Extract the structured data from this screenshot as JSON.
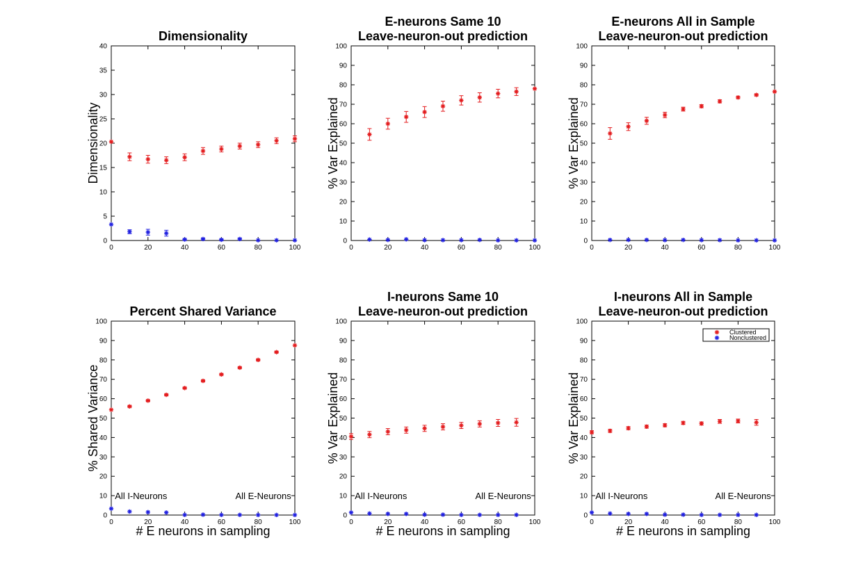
{
  "series_names": [
    "Clustered",
    "Nonclustered"
  ],
  "colors": {
    "Clustered": "#e31a1c",
    "Nonclustered": "#1f1fe0",
    "axes": "#000000",
    "background": "#ffffff"
  },
  "chart_data": [
    {
      "type": "scatter",
      "title_lines": [
        "Dimensionality"
      ],
      "xlabel": "",
      "ylabel": "Dimensionality",
      "xlim": [
        0,
        100
      ],
      "ylim": [
        0,
        40
      ],
      "xticks": [
        0,
        20,
        40,
        60,
        80,
        100
      ],
      "yticks": [
        0,
        5,
        10,
        15,
        20,
        25,
        30,
        35,
        40
      ],
      "annotations": [],
      "legend": false,
      "series": [
        {
          "name": "Clustered",
          "x": [
            0,
            10,
            20,
            30,
            40,
            50,
            60,
            70,
            80,
            90,
            100
          ],
          "y": [
            20.3,
            17.2,
            16.7,
            16.5,
            17.1,
            18.4,
            18.8,
            19.4,
            19.7,
            20.5,
            20.9
          ],
          "err": [
            0,
            0.8,
            0.8,
            0.7,
            0.7,
            0.7,
            0.6,
            0.6,
            0.6,
            0.6,
            0.6
          ]
        },
        {
          "name": "Nonclustered",
          "x": [
            0,
            10,
            20,
            30,
            40,
            50,
            60,
            70,
            80,
            90,
            100
          ],
          "y": [
            3.3,
            1.8,
            1.7,
            1.5,
            0.2,
            0.3,
            0.15,
            0.3,
            0.05,
            0.05,
            0.05
          ],
          "err": [
            0,
            0.4,
            0.6,
            0.6,
            0.2,
            0.2,
            0.15,
            0.2,
            0,
            0,
            0
          ]
        }
      ]
    },
    {
      "type": "scatter",
      "title_lines": [
        "E-neurons Same 10",
        "Leave-neuron-out prediction"
      ],
      "xlabel": "",
      "ylabel": "% Var Explained",
      "xlim": [
        0,
        100
      ],
      "ylim": [
        0,
        100
      ],
      "xticks": [
        0,
        20,
        40,
        60,
        80,
        100
      ],
      "yticks": [
        0,
        10,
        20,
        30,
        40,
        50,
        60,
        70,
        80,
        90,
        100
      ],
      "annotations": [],
      "legend": false,
      "series": [
        {
          "name": "Clustered",
          "x": [
            10,
            20,
            30,
            40,
            50,
            60,
            70,
            80,
            90,
            100
          ],
          "y": [
            54.5,
            60,
            63.5,
            66,
            69,
            72,
            73.5,
            75.5,
            76.5,
            78
          ],
          "err": [
            3,
            2.8,
            2.8,
            2.8,
            2.6,
            2.4,
            2.4,
            2.2,
            2.0,
            0
          ]
        },
        {
          "name": "Nonclustered",
          "x": [
            10,
            20,
            30,
            40,
            50,
            60,
            70,
            80,
            90,
            100
          ],
          "y": [
            0.5,
            0.3,
            0.6,
            0.2,
            0.2,
            0.2,
            0.3,
            0.1,
            0.1,
            0.1
          ],
          "err": [
            0,
            0,
            0,
            0,
            0,
            0,
            0,
            0,
            0,
            0
          ]
        }
      ]
    },
    {
      "type": "scatter",
      "title_lines": [
        "E-neurons All in Sample",
        "Leave-neuron-out prediction"
      ],
      "xlabel": "",
      "ylabel": "% Var Explained",
      "xlim": [
        0,
        100
      ],
      "ylim": [
        0,
        100
      ],
      "xticks": [
        0,
        20,
        40,
        60,
        80,
        100
      ],
      "yticks": [
        0,
        10,
        20,
        30,
        40,
        50,
        60,
        70,
        80,
        90,
        100
      ],
      "annotations": [],
      "legend": false,
      "series": [
        {
          "name": "Clustered",
          "x": [
            10,
            20,
            30,
            40,
            50,
            60,
            70,
            80,
            90,
            100
          ],
          "y": [
            55,
            58.5,
            61.5,
            64.5,
            67.5,
            69,
            71.5,
            73.5,
            74.8,
            76.5
          ],
          "err": [
            3,
            2,
            1.8,
            1.4,
            1.0,
            0.8,
            0.8,
            0.6,
            0.5,
            0
          ]
        },
        {
          "name": "Nonclustered",
          "x": [
            10,
            20,
            30,
            40,
            50,
            60,
            70,
            80,
            90,
            100
          ],
          "y": [
            0.3,
            0.3,
            0.3,
            0.2,
            0.3,
            0.2,
            0.2,
            0.1,
            0.1,
            0.1
          ],
          "err": [
            0,
            0,
            0,
            0,
            0,
            0,
            0,
            0,
            0,
            0
          ]
        }
      ]
    },
    {
      "type": "scatter",
      "title_lines": [
        "Percent Shared Variance"
      ],
      "xlabel": "# E neurons in sampling",
      "ylabel": "% Shared Variance",
      "xlim": [
        0,
        100
      ],
      "ylim": [
        0,
        100
      ],
      "xticks": [
        0,
        20,
        40,
        60,
        80,
        100
      ],
      "yticks": [
        0,
        10,
        20,
        30,
        40,
        50,
        60,
        70,
        80,
        90,
        100
      ],
      "annotations": [
        {
          "text": "All I-Neurons",
          "x": 2,
          "y": 10,
          "anchor": "start"
        },
        {
          "text": "All E-Neurons",
          "x": 98,
          "y": 10,
          "anchor": "end"
        }
      ],
      "legend": false,
      "series": [
        {
          "name": "Clustered",
          "x": [
            0,
            10,
            20,
            30,
            40,
            50,
            60,
            70,
            80,
            90,
            100
          ],
          "y": [
            54.3,
            56,
            59,
            62,
            65.5,
            69.2,
            72.5,
            76,
            80,
            84,
            87.5
          ],
          "err": [
            0,
            0.4,
            0.4,
            0.4,
            0.4,
            0.4,
            0.4,
            0.4,
            0.4,
            0.4,
            0
          ]
        },
        {
          "name": "Nonclustered",
          "x": [
            0,
            10,
            20,
            30,
            40,
            50,
            60,
            70,
            80,
            90,
            100
          ],
          "y": [
            3.3,
            1.8,
            1.5,
            1.3,
            0.1,
            0.2,
            0.1,
            0.1,
            0.05,
            0.05,
            0.05
          ],
          "err": [
            0,
            0,
            0,
            0,
            0,
            0,
            0,
            0,
            0,
            0,
            0
          ]
        }
      ]
    },
    {
      "type": "scatter",
      "title_lines": [
        "I-neurons Same 10",
        "Leave-neuron-out prediction"
      ],
      "xlabel": "# E neurons in sampling",
      "ylabel": "% Var Explained",
      "xlim": [
        0,
        100
      ],
      "ylim": [
        0,
        100
      ],
      "xticks": [
        0,
        20,
        40,
        60,
        80,
        100
      ],
      "yticks": [
        0,
        10,
        20,
        30,
        40,
        50,
        60,
        70,
        80,
        90,
        100
      ],
      "annotations": [
        {
          "text": "All I-Neurons",
          "x": 2,
          "y": 10,
          "anchor": "start"
        },
        {
          "text": "All E-Neurons",
          "x": 98,
          "y": 10,
          "anchor": "end"
        }
      ],
      "legend": false,
      "series": [
        {
          "name": "Clustered",
          "x": [
            0,
            10,
            20,
            30,
            40,
            50,
            60,
            70,
            80,
            90
          ],
          "y": [
            40.5,
            41.5,
            43,
            43.8,
            44.7,
            45.5,
            46.2,
            47,
            47.5,
            47.8
          ],
          "err": [
            1.5,
            1.6,
            1.6,
            1.6,
            1.6,
            1.6,
            1.6,
            1.6,
            1.8,
            2.0
          ]
        },
        {
          "name": "Nonclustered",
          "x": [
            0,
            10,
            20,
            30,
            40,
            50,
            60,
            70,
            80,
            90
          ],
          "y": [
            1.3,
            0.8,
            0.6,
            0.6,
            0.2,
            0.2,
            0.1,
            0.1,
            0.1,
            0.1
          ],
          "err": [
            0,
            0,
            0,
            0,
            0,
            0,
            0,
            0,
            0,
            0
          ]
        }
      ]
    },
    {
      "type": "scatter",
      "title_lines": [
        "I-neurons All in Sample",
        "Leave-neuron-out prediction"
      ],
      "xlabel": "# E neurons in sampling",
      "ylabel": "% Var Explained",
      "xlim": [
        0,
        100
      ],
      "ylim": [
        0,
        100
      ],
      "xticks": [
        0,
        20,
        40,
        60,
        80,
        100
      ],
      "yticks": [
        0,
        10,
        20,
        30,
        40,
        50,
        60,
        70,
        80,
        90,
        100
      ],
      "annotations": [
        {
          "text": "All I-Neurons",
          "x": 2,
          "y": 10,
          "anchor": "start"
        },
        {
          "text": "All E-Neurons",
          "x": 98,
          "y": 10,
          "anchor": "end"
        }
      ],
      "legend": true,
      "legend_location": "top-right",
      "series": [
        {
          "name": "Clustered",
          "x": [
            0,
            10,
            20,
            30,
            40,
            50,
            60,
            70,
            80,
            90
          ],
          "y": [
            42.7,
            43.4,
            44.8,
            45.6,
            46.3,
            47.5,
            47.2,
            48.3,
            48.5,
            47.8
          ],
          "err": [
            0.8,
            0.8,
            0.8,
            0.8,
            0.8,
            0.8,
            0.8,
            1.0,
            1.0,
            1.5
          ]
        },
        {
          "name": "Nonclustered",
          "x": [
            0,
            10,
            20,
            30,
            40,
            50,
            60,
            70,
            80,
            90
          ],
          "y": [
            1.3,
            0.8,
            0.6,
            0.6,
            0.2,
            0.2,
            0.1,
            0.1,
            0.1,
            0.1
          ],
          "err": [
            0,
            0,
            0,
            0,
            0,
            0,
            0,
            0,
            0,
            0
          ]
        }
      ]
    }
  ]
}
